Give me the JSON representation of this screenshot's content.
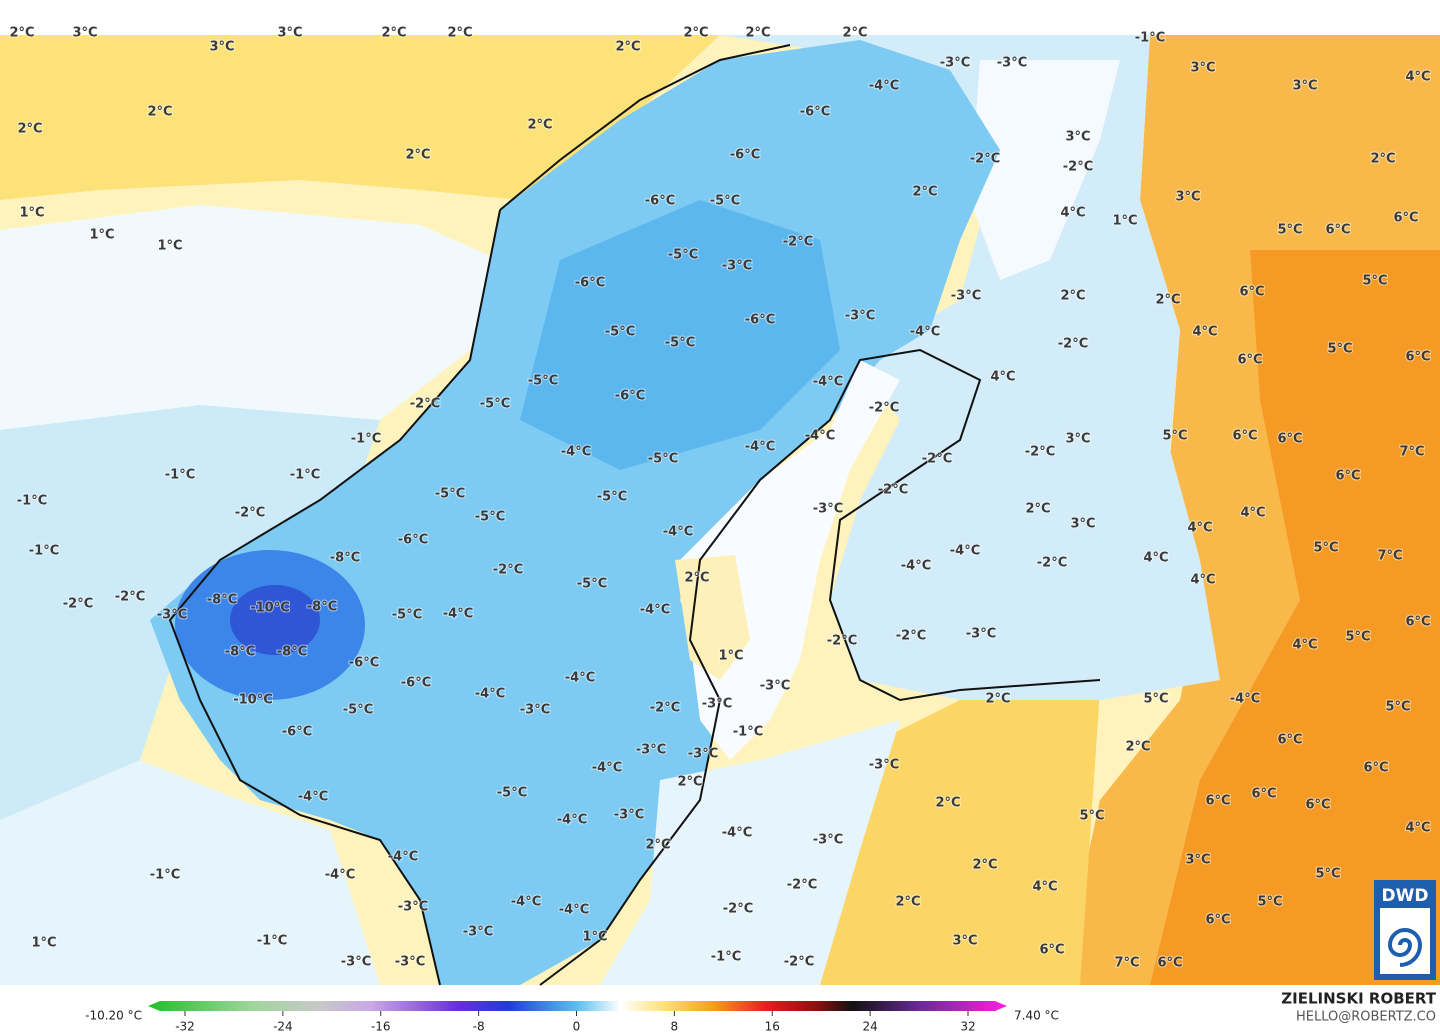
{
  "labels": [
    "2°C",
    "3°C",
    "3°C",
    "3°C",
    "2°C",
    "2°C",
    "2°C",
    "2°C",
    "2°C",
    "2°C",
    "-1°C",
    "3°C",
    "3°C",
    "4°C",
    "2°C",
    "2°C",
    "2°C",
    "2°C",
    "-6°C",
    "-6°C",
    "-4°C",
    "-3°C",
    "-3°C",
    "-2°C",
    "3°C",
    "-2°C",
    "2°C",
    "1°C",
    "1°C",
    "1°C",
    "-6°C",
    "-5°C",
    "2°C",
    "3°C",
    "4°C",
    "1°C",
    "5°C",
    "6°C",
    "6°C",
    "-5°C",
    "-3°C",
    "-2°C",
    "-6°C",
    "-6°C",
    "-3°C",
    "-3°C",
    "2°C",
    "2°C",
    "6°C",
    "5°C",
    "-5°C",
    "-5°C",
    "-4°C",
    "4°C",
    "6°C",
    "5°C",
    "6°C",
    "-5°C",
    "-4°C",
    "-2°C",
    "-6°C",
    "4°C",
    "-2°C",
    "-5°C",
    "-2°C",
    "-1°C",
    "-4°C",
    "-4°C",
    "3°C",
    "5°C",
    "6°C",
    "6°C",
    "7°C",
    "-1°C",
    "-1°C",
    "-4°C",
    "-5°C",
    "-2°C",
    "-2°C",
    "6°C",
    "-1°C",
    "-2°C",
    "-5°C",
    "-5°C",
    "-2°C",
    "-5°C",
    "-4°C",
    "-3°C",
    "2°C",
    "3°C",
    "4°C",
    "4°C",
    "-1°C",
    "-8°C",
    "-6°C",
    "-4°C",
    "-2°C",
    "4°C",
    "5°C",
    "7°C",
    "-2°C",
    "-2°C",
    "-3°C",
    "-8°C",
    "-10°C",
    "-8°C",
    "-5°C",
    "-4°C",
    "-2°C",
    "-5°C",
    "2°C",
    "-4°C",
    "-4°C",
    "4°C",
    "-2°C",
    "-3°C",
    "-2°C",
    "5°C",
    "6°C",
    "4°C",
    "-8°C",
    "-8°C",
    "-6°C",
    "-6°C",
    "-4°C",
    "1°C",
    "-3°C",
    "-4°C",
    "-2°C",
    "-3°C",
    "2°C",
    "5°C",
    "-4°C",
    "5°C",
    "-10°C",
    "-5°C",
    "-3°C",
    "-1°C",
    "2°C",
    "6°C",
    "6°C",
    "-6°C",
    "-3°C",
    "-3°C",
    "-4°C",
    "-3°C",
    "-4°C",
    "-5°C",
    "-3°C",
    "2°C",
    "-4°C",
    "2°C",
    "6°C",
    "6°C",
    "6°C",
    "5°C",
    "4°C",
    "-4°C",
    "-3°C",
    "2°C",
    "-4°C",
    "-1°C",
    "-4°C",
    "-2°C",
    "2°C",
    "3°C",
    "5°C",
    "4°C",
    "-2°C",
    "-3°C",
    "-4°C",
    "-4°C",
    "2°C",
    "5°C",
    "6°C",
    "1°C",
    "-1°C",
    "-3°C",
    "1°C",
    "3°C",
    "6°C",
    "-3°C",
    "-3°C",
    "-1°C",
    "-2°C",
    "7°C",
    "6°C"
  ],
  "colorbar": {
    "min_label": "-10.20 °C",
    "max_label": "7.40 °C",
    "ticks": [
      -32,
      -24,
      -16,
      -8,
      0,
      8,
      16,
      24,
      32
    ]
  },
  "credit": {
    "name": "ZIELINSKI ROBERT",
    "contact": "HELLO@ROBERTZ.CO"
  },
  "logo": "DWD"
}
